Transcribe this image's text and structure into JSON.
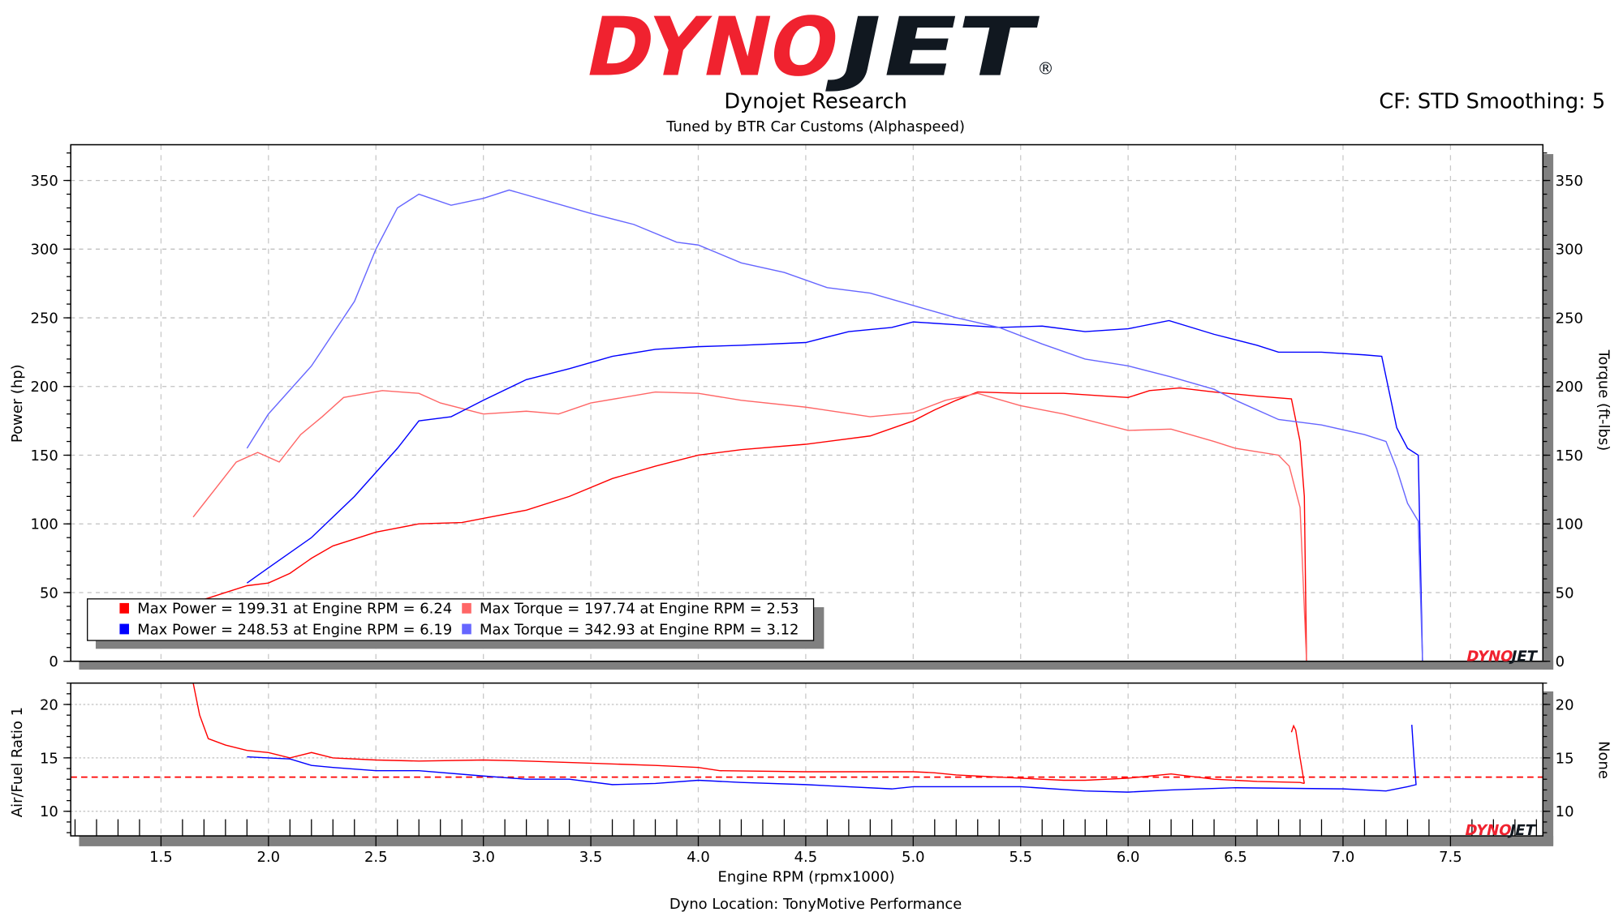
{
  "header": {
    "logo": {
      "left": "DYNO",
      "right": "JET",
      "mark": "®",
      "colors": {
        "left": "#f0222f",
        "right": "#111820"
      }
    },
    "title": "Dynojet Research",
    "subtitle": "Tuned by BTR Car Customs (Alphaspeed)",
    "cf_smoothing": "CF: STD Smoothing: 5"
  },
  "footer": {
    "location": "Dyno Location: TonyMotive Performance"
  },
  "watermark": {
    "left": "DYNO",
    "right": "JET"
  },
  "chart_data": [
    {
      "type": "line",
      "xlabel": "Engine RPM (rpmx1000)",
      "ylabel": "Power (hp)",
      "y2label": "Torque (ft-lbs)",
      "xlim": [
        1.08,
        7.93
      ],
      "ylim": [
        0,
        376
      ],
      "xticks": [
        "1.5",
        "2.0",
        "2.5",
        "3.0",
        "3.5",
        "4.0",
        "4.5",
        "5.0",
        "5.5",
        "6.0",
        "6.5",
        "7.0",
        "7.5"
      ],
      "yticks": [
        "0",
        "50",
        "100",
        "150",
        "200",
        "250",
        "300",
        "350"
      ],
      "grid": true,
      "legend_placement": "bottom-left",
      "legend": [
        {
          "text": "Max Power = 199.31 at Engine RPM = 6.24",
          "color": "#ff0000"
        },
        {
          "text": "Max Torque = 197.74 at Engine RPM = 2.53",
          "color": "#ff6666"
        },
        {
          "text": "Max Power = 248.53 at Engine RPM = 6.19",
          "color": "#0000ff"
        },
        {
          "text": "Max Torque = 342.93 at Engine RPM = 3.12",
          "color": "#6666ff"
        }
      ],
      "series": [
        {
          "color": "#ff0000",
          "points": [
            [
              1.7,
              45
            ],
            [
              1.8,
              50
            ],
            [
              1.9,
              55
            ],
            [
              2.0,
              57
            ],
            [
              2.1,
              64
            ],
            [
              2.2,
              75
            ],
            [
              2.3,
              84
            ],
            [
              2.4,
              89
            ],
            [
              2.5,
              94
            ],
            [
              2.7,
              100
            ],
            [
              2.9,
              101
            ],
            [
              3.0,
              104
            ],
            [
              3.2,
              110
            ],
            [
              3.4,
              120
            ],
            [
              3.6,
              133
            ],
            [
              3.8,
              142
            ],
            [
              4.0,
              150
            ],
            [
              4.2,
              154
            ],
            [
              4.5,
              158
            ],
            [
              4.8,
              164
            ],
            [
              5.0,
              175
            ],
            [
              5.1,
              183
            ],
            [
              5.2,
              190
            ],
            [
              5.3,
              196
            ],
            [
              5.5,
              195
            ],
            [
              5.7,
              195
            ],
            [
              5.9,
              193
            ],
            [
              6.0,
              192
            ],
            [
              6.1,
              197
            ],
            [
              6.24,
              199
            ],
            [
              6.4,
              196
            ],
            [
              6.6,
              193
            ],
            [
              6.76,
              191
            ],
            [
              6.8,
              160
            ],
            [
              6.82,
              120
            ],
            [
              6.83,
              0
            ]
          ]
        },
        {
          "color": "#ff6666",
          "points": [
            [
              1.65,
              105
            ],
            [
              1.75,
              125
            ],
            [
              1.85,
              145
            ],
            [
              1.95,
              152
            ],
            [
              2.05,
              145
            ],
            [
              2.15,
              165
            ],
            [
              2.25,
              178
            ],
            [
              2.35,
              192
            ],
            [
              2.53,
              197
            ],
            [
              2.7,
              195
            ],
            [
              2.8,
              188
            ],
            [
              3.0,
              180
            ],
            [
              3.2,
              182
            ],
            [
              3.35,
              180
            ],
            [
              3.5,
              188
            ],
            [
              3.8,
              196
            ],
            [
              4.0,
              195
            ],
            [
              4.2,
              190
            ],
            [
              4.5,
              185
            ],
            [
              4.8,
              178
            ],
            [
              5.0,
              181
            ],
            [
              5.15,
              190
            ],
            [
              5.3,
              195
            ],
            [
              5.5,
              186
            ],
            [
              5.7,
              180
            ],
            [
              5.9,
              172
            ],
            [
              6.0,
              168
            ],
            [
              6.2,
              169
            ],
            [
              6.4,
              160
            ],
            [
              6.5,
              155
            ],
            [
              6.7,
              150
            ],
            [
              6.75,
              142
            ],
            [
              6.8,
              112
            ],
            [
              6.83,
              0
            ]
          ]
        },
        {
          "color": "#0000ff",
          "points": [
            [
              1.9,
              57
            ],
            [
              2.0,
              68
            ],
            [
              2.2,
              90
            ],
            [
              2.4,
              120
            ],
            [
              2.6,
              155
            ],
            [
              2.7,
              175
            ],
            [
              2.85,
              178
            ],
            [
              3.0,
              190
            ],
            [
              3.2,
              205
            ],
            [
              3.4,
              213
            ],
            [
              3.6,
              222
            ],
            [
              3.8,
              227
            ],
            [
              4.0,
              229
            ],
            [
              4.2,
              230
            ],
            [
              4.5,
              232
            ],
            [
              4.7,
              240
            ],
            [
              4.9,
              243
            ],
            [
              5.0,
              247
            ],
            [
              5.2,
              245
            ],
            [
              5.4,
              243
            ],
            [
              5.6,
              244
            ],
            [
              5.8,
              240
            ],
            [
              6.0,
              242
            ],
            [
              6.19,
              248
            ],
            [
              6.4,
              238
            ],
            [
              6.6,
              230
            ],
            [
              6.7,
              225
            ],
            [
              6.9,
              225
            ],
            [
              7.1,
              223
            ],
            [
              7.18,
              222
            ],
            [
              7.25,
              170
            ],
            [
              7.3,
              155
            ],
            [
              7.35,
              150
            ],
            [
              7.37,
              0
            ]
          ]
        },
        {
          "color": "#6666ff",
          "points": [
            [
              1.9,
              155
            ],
            [
              2.0,
              180
            ],
            [
              2.2,
              215
            ],
            [
              2.4,
              262
            ],
            [
              2.5,
              300
            ],
            [
              2.6,
              330
            ],
            [
              2.7,
              340
            ],
            [
              2.85,
              332
            ],
            [
              3.0,
              337
            ],
            [
              3.12,
              343
            ],
            [
              3.3,
              335
            ],
            [
              3.5,
              326
            ],
            [
              3.7,
              318
            ],
            [
              3.9,
              305
            ],
            [
              4.0,
              303
            ],
            [
              4.2,
              290
            ],
            [
              4.4,
              283
            ],
            [
              4.6,
              272
            ],
            [
              4.8,
              268
            ],
            [
              5.0,
              259
            ],
            [
              5.2,
              250
            ],
            [
              5.4,
              243
            ],
            [
              5.6,
              231
            ],
            [
              5.8,
              220
            ],
            [
              6.0,
              215
            ],
            [
              6.2,
              207
            ],
            [
              6.4,
              198
            ],
            [
              6.5,
              190
            ],
            [
              6.7,
              176
            ],
            [
              6.9,
              172
            ],
            [
              7.1,
              165
            ],
            [
              7.2,
              160
            ],
            [
              7.25,
              140
            ],
            [
              7.3,
              115
            ],
            [
              7.35,
              102
            ],
            [
              7.37,
              0
            ]
          ]
        }
      ]
    },
    {
      "type": "line",
      "xlabel": "Engine RPM (rpmx1000)",
      "ylabel": "Air/Fuel Ratio 1",
      "y2label": "None",
      "xlim": [
        1.08,
        7.93
      ],
      "ylim": [
        7.7,
        22
      ],
      "yticks": [
        "10",
        "15",
        "20"
      ],
      "reference_line": {
        "value": 13.2,
        "color": "#ff0000",
        "style": "dashed"
      },
      "series": [
        {
          "color": "#ff0000",
          "points": [
            [
              1.65,
              22
            ],
            [
              1.68,
              19
            ],
            [
              1.72,
              16.8
            ],
            [
              1.8,
              16.2
            ],
            [
              1.9,
              15.7
            ],
            [
              2.0,
              15.5
            ],
            [
              2.1,
              15.0
            ],
            [
              2.2,
              15.5
            ],
            [
              2.3,
              15.0
            ],
            [
              2.5,
              14.8
            ],
            [
              2.7,
              14.7
            ],
            [
              3.0,
              14.8
            ],
            [
              3.2,
              14.7
            ],
            [
              3.5,
              14.5
            ],
            [
              3.8,
              14.3
            ],
            [
              4.0,
              14.1
            ],
            [
              4.1,
              13.8
            ],
            [
              4.5,
              13.7
            ],
            [
              5.0,
              13.7
            ],
            [
              5.1,
              13.6
            ],
            [
              5.2,
              13.4
            ],
            [
              5.5,
              13.1
            ],
            [
              5.7,
              12.9
            ],
            [
              5.8,
              12.9
            ],
            [
              6.0,
              13.1
            ],
            [
              6.2,
              13.5
            ],
            [
              6.4,
              13.0
            ],
            [
              6.6,
              12.8
            ],
            [
              6.8,
              12.7
            ],
            [
              6.82,
              12.6
            ]
          ]
        },
        {
          "color": "#ff0000",
          "points": [
            [
              6.76,
              17.4
            ],
            [
              6.77,
              18.0
            ],
            [
              6.78,
              17.6
            ],
            [
              6.8,
              15.0
            ],
            [
              6.82,
              12.6
            ]
          ]
        },
        {
          "color": "#0000ff",
          "points": [
            [
              1.9,
              15.1
            ],
            [
              2.0,
              15.0
            ],
            [
              2.1,
              14.9
            ],
            [
              2.2,
              14.3
            ],
            [
              2.3,
              14.1
            ],
            [
              2.5,
              13.8
            ],
            [
              2.7,
              13.8
            ],
            [
              3.0,
              13.3
            ],
            [
              3.2,
              13.0
            ],
            [
              3.4,
              13.0
            ],
            [
              3.6,
              12.5
            ],
            [
              3.8,
              12.6
            ],
            [
              4.0,
              12.9
            ],
            [
              4.2,
              12.7
            ],
            [
              4.5,
              12.5
            ],
            [
              4.9,
              12.1
            ],
            [
              5.0,
              12.3
            ],
            [
              5.5,
              12.3
            ],
            [
              5.8,
              11.9
            ],
            [
              6.0,
              11.8
            ],
            [
              6.2,
              12.0
            ],
            [
              6.5,
              12.2
            ],
            [
              7.0,
              12.1
            ],
            [
              7.2,
              11.9
            ],
            [
              7.3,
              12.3
            ],
            [
              7.34,
              12.5
            ],
            [
              7.33,
              15.0
            ],
            [
              7.32,
              18.1
            ]
          ]
        }
      ]
    }
  ]
}
